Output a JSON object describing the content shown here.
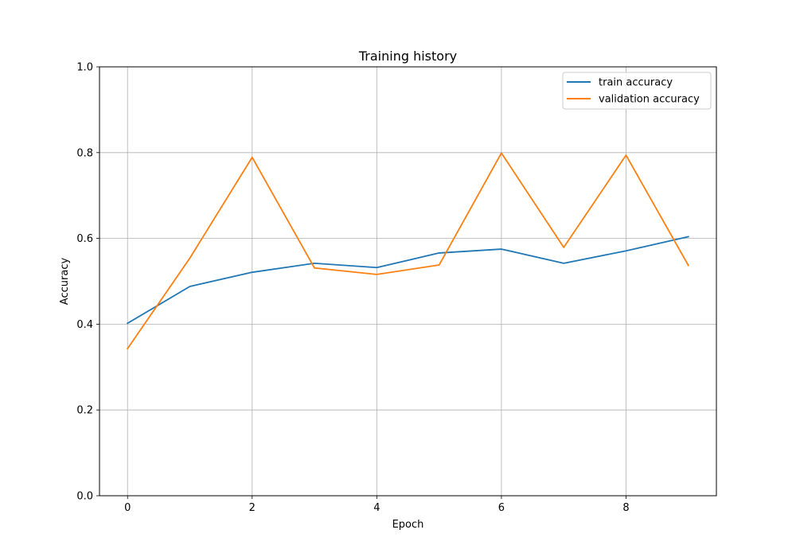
{
  "chart_data": {
    "type": "line",
    "title": "Training history",
    "xlabel": "Epoch",
    "ylabel": "Accuracy",
    "xlim": [
      -0.45,
      9.45
    ],
    "ylim": [
      0,
      1
    ],
    "xticks": [
      0,
      2,
      4,
      6,
      8
    ],
    "yticks": [
      0.0,
      0.2,
      0.4,
      0.6,
      0.8,
      1.0
    ],
    "xtick_labels": [
      "0",
      "2",
      "4",
      "6",
      "8"
    ],
    "ytick_labels": [
      "0.0",
      "0.2",
      "0.4",
      "0.6",
      "0.8",
      "1.0"
    ],
    "grid": true,
    "legend_position": "top-right",
    "x": [
      0,
      1,
      2,
      3,
      4,
      5,
      6,
      7,
      8,
      9
    ],
    "series": [
      {
        "name": "train accuracy",
        "color": "#1f77b4",
        "values": [
          0.402,
          0.488,
          0.521,
          0.542,
          0.532,
          0.566,
          0.575,
          0.542,
          0.571,
          0.604
        ]
      },
      {
        "name": "validation accuracy",
        "color": "#ff7f0e",
        "values": [
          0.343,
          0.554,
          0.789,
          0.531,
          0.516,
          0.538,
          0.799,
          0.579,
          0.794,
          0.537
        ]
      }
    ]
  }
}
